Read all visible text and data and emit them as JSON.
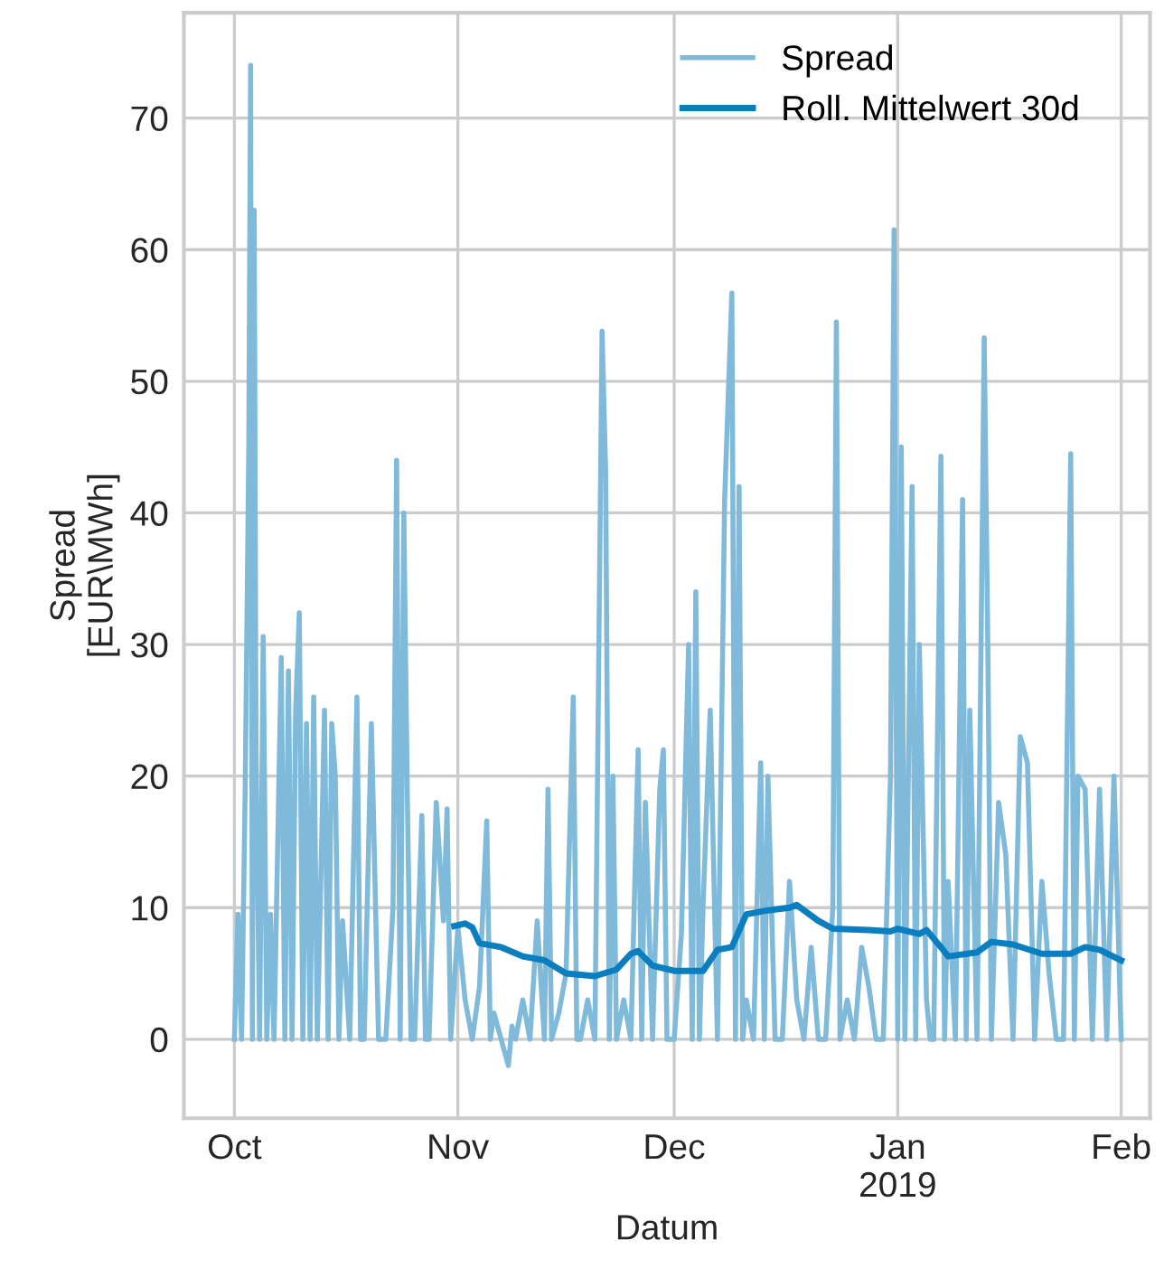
{
  "chart_data": {
    "type": "line",
    "xlabel": "Datum",
    "ylabel": "Spread\n[EUR\\MWh]",
    "xlim": [
      "2018-09-24",
      "2019-02-05"
    ],
    "ylim": [
      -6,
      78
    ],
    "xticks": [
      {
        "value": "2018-10-01",
        "label": "Oct"
      },
      {
        "value": "2018-11-01",
        "label": "Nov"
      },
      {
        "value": "2018-12-01",
        "label": "Dec"
      },
      {
        "value": "2019-01-01",
        "label": "Jan\n2019"
      },
      {
        "value": "2019-02-01",
        "label": "Feb"
      }
    ],
    "yticks": [
      0,
      10,
      20,
      30,
      40,
      50,
      60,
      70
    ],
    "grid": true,
    "legend": "top right",
    "line_style": "solid",
    "series": [
      {
        "name": "Spread",
        "color": "#7fbadb",
        "x": [
          "2018-10-01T00:00",
          "2018-10-01T12:00",
          "2018-10-02T00:00",
          "2018-10-02T12:00",
          "2018-10-03T00:00",
          "2018-10-03T06:00",
          "2018-10-03T12:00",
          "2018-10-03T18:00",
          "2018-10-04T00:00",
          "2018-10-04T12:00",
          "2018-10-05T00:00",
          "2018-10-05T12:00",
          "2018-10-06T00:00",
          "2018-10-06T12:00",
          "2018-10-07T12:00",
          "2018-10-08T00:00",
          "2018-10-08T12:00",
          "2018-10-09T00:00",
          "2018-10-09T12:00",
          "2018-10-10T00:00",
          "2018-10-10T12:00",
          "2018-10-11T00:00",
          "2018-10-11T12:00",
          "2018-10-12T00:00",
          "2018-10-12T12:00",
          "2018-10-13T12:00",
          "2018-10-14T00:00",
          "2018-10-14T12:00",
          "2018-10-15T00:00",
          "2018-10-15T12:00",
          "2018-10-16T00:00",
          "2018-10-17T00:00",
          "2018-10-18T00:00",
          "2018-10-18T12:00",
          "2018-10-19T00:00",
          "2018-10-20T00:00",
          "2018-10-21T00:00",
          "2018-10-22T00:00",
          "2018-10-23T00:00",
          "2018-10-23T12:00",
          "2018-10-24T00:00",
          "2018-10-24T12:00",
          "2018-10-25T00:00",
          "2018-10-25T12:00",
          "2018-10-26T00:00",
          "2018-10-27T00:00",
          "2018-10-27T12:00",
          "2018-10-28T00:00",
          "2018-10-29T00:00",
          "2018-10-30T00:00",
          "2018-10-30T12:00",
          "2018-10-31T00:00",
          "2018-11-01T00:00",
          "2018-11-02T00:00",
          "2018-11-03T00:00",
          "2018-11-04T00:00",
          "2018-11-05T00:00",
          "2018-11-05T12:00",
          "2018-11-06T00:00",
          "2018-11-07T00:00",
          "2018-11-08T00:00",
          "2018-11-08T12:00",
          "2018-11-09T00:00",
          "2018-11-10T00:00",
          "2018-11-11T00:00",
          "2018-11-12T00:00",
          "2018-11-13T00:00",
          "2018-11-13T12:00",
          "2018-11-14T00:00",
          "2018-11-15T00:00",
          "2018-11-16T00:00",
          "2018-11-17T00:00",
          "2018-11-17T12:00",
          "2018-11-18T00:00",
          "2018-11-19T00:00",
          "2018-11-20T00:00",
          "2018-11-21T00:00",
          "2018-11-21T12:00",
          "2018-11-22T00:00",
          "2018-11-22T12:00",
          "2018-11-23T00:00",
          "2018-11-24T00:00",
          "2018-11-25T00:00",
          "2018-11-26T00:00",
          "2018-11-26T12:00",
          "2018-11-27T00:00",
          "2018-11-28T00:00",
          "2018-11-29T00:00",
          "2018-11-29T12:00",
          "2018-11-30T00:00",
          "2018-12-01T00:00",
          "2018-12-02T00:00",
          "2018-12-03T00:00",
          "2018-12-03T12:00",
          "2018-12-04T00:00",
          "2018-12-04T12:00",
          "2018-12-05T00:00",
          "2018-12-06T00:00",
          "2018-12-07T00:00",
          "2018-12-08T00:00",
          "2018-12-09T00:00",
          "2018-12-09T12:00",
          "2018-12-10T00:00",
          "2018-12-10T12:00",
          "2018-12-11T00:00",
          "2018-12-12T00:00",
          "2018-12-13T00:00",
          "2018-12-13T12:00",
          "2018-12-14T00:00",
          "2018-12-15T00:00",
          "2018-12-16T00:00",
          "2018-12-17T00:00",
          "2018-12-18T00:00",
          "2018-12-19T00:00",
          "2018-12-20T00:00",
          "2018-12-21T00:00",
          "2018-12-22T00:00",
          "2018-12-23T00:00",
          "2018-12-23T12:00",
          "2018-12-24T00:00",
          "2018-12-25T00:00",
          "2018-12-26T00:00",
          "2018-12-27T00:00",
          "2018-12-28T00:00",
          "2018-12-29T00:00",
          "2018-12-30T00:00",
          "2018-12-31T00:00",
          "2018-12-31T12:00",
          "2019-01-01T00:00",
          "2019-01-01T12:00",
          "2019-01-02T00:00",
          "2019-01-03T00:00",
          "2019-01-03T12:00",
          "2019-01-04T00:00",
          "2019-01-05T00:00",
          "2019-01-05T12:00",
          "2019-01-06T00:00",
          "2019-01-07T00:00",
          "2019-01-07T12:00",
          "2019-01-08T00:00",
          "2019-01-09T00:00",
          "2019-01-10T00:00",
          "2019-01-10T12:00",
          "2019-01-11T00:00",
          "2019-01-12T00:00",
          "2019-01-13T00:00",
          "2019-01-13T12:00",
          "2019-01-14T00:00",
          "2019-01-15T00:00",
          "2019-01-16T00:00",
          "2019-01-17T00:00",
          "2019-01-18T00:00",
          "2019-01-19T00:00",
          "2019-01-20T00:00",
          "2019-01-21T00:00",
          "2019-01-22T00:00",
          "2019-01-23T00:00",
          "2019-01-24T00:00",
          "2019-01-25T00:00",
          "2019-01-25T12:00",
          "2019-01-26T00:00",
          "2019-01-27T00:00",
          "2019-01-28T00:00",
          "2019-01-29T00:00",
          "2019-01-30T00:00",
          "2019-01-31T00:00",
          "2019-02-01T00:00"
        ],
        "values": [
          0,
          9.5,
          0,
          19,
          45,
          74,
          0,
          63,
          22,
          0,
          30.6,
          0,
          9.5,
          0,
          29,
          0,
          28,
          0,
          25,
          32.4,
          0,
          24,
          0,
          26,
          0,
          25,
          0,
          24,
          20,
          0,
          9,
          0,
          26,
          0,
          0,
          24,
          0,
          0,
          10,
          44,
          0,
          40,
          18,
          0,
          0,
          17,
          0,
          0,
          18,
          9,
          17.5,
          0,
          8.5,
          3,
          0,
          4,
          16.6,
          0,
          2,
          0,
          -2,
          1,
          0,
          3,
          0,
          9,
          0,
          19,
          0,
          2,
          5,
          26,
          0,
          0,
          3,
          0,
          53.8,
          43,
          0,
          20,
          0,
          3,
          0,
          22,
          0,
          18,
          0,
          19,
          22,
          0,
          0,
          8,
          30,
          0,
          34,
          0,
          10,
          25,
          0,
          41,
          56.7,
          0,
          42,
          0,
          3,
          0,
          21,
          0,
          20,
          0,
          0,
          12,
          3,
          0,
          7,
          0,
          0,
          10,
          54.5,
          0,
          3,
          0,
          7,
          4,
          0,
          0,
          20,
          61.5,
          0,
          45,
          0,
          42,
          0,
          30,
          3,
          0,
          0,
          44.3,
          0,
          12,
          0,
          41,
          0,
          25,
          0,
          53.3,
          30,
          0,
          18,
          14,
          0,
          23,
          21,
          0,
          12,
          5,
          0,
          0,
          44.5,
          0,
          20,
          19,
          0,
          19,
          0,
          20,
          0
        ]
      },
      {
        "name": "Roll. Mittelwert 30d",
        "color": "#0a7ebf",
        "x": [
          "2018-10-31T12:00",
          "2018-11-02",
          "2018-11-03",
          "2018-11-04",
          "2018-11-07",
          "2018-11-10",
          "2018-11-13",
          "2018-11-16",
          "2018-11-20",
          "2018-11-23",
          "2018-11-25",
          "2018-11-26",
          "2018-11-28",
          "2018-12-01",
          "2018-12-05",
          "2018-12-07",
          "2018-12-09",
          "2018-12-11",
          "2018-12-14",
          "2018-12-17",
          "2018-12-18",
          "2018-12-21",
          "2018-12-23",
          "2018-12-28",
          "2018-12-31",
          "2019-01-01",
          "2019-01-04",
          "2019-01-05",
          "2019-01-07",
          "2019-01-08",
          "2019-01-12",
          "2019-01-14",
          "2019-01-17",
          "2019-01-21",
          "2019-01-25",
          "2019-01-27",
          "2019-01-29",
          "2019-02-01"
        ],
        "values": [
          8.6,
          8.8,
          8.5,
          7.3,
          7.0,
          6.3,
          6.0,
          5.0,
          4.8,
          5.3,
          6.5,
          6.7,
          5.6,
          5.2,
          5.2,
          6.8,
          7.0,
          9.5,
          9.8,
          10.0,
          10.2,
          9.0,
          8.4,
          8.3,
          8.2,
          8.4,
          8.0,
          8.3,
          7.0,
          6.3,
          6.6,
          7.4,
          7.2,
          6.5,
          6.5,
          7.0,
          6.8,
          6.0
        ]
      }
    ]
  }
}
